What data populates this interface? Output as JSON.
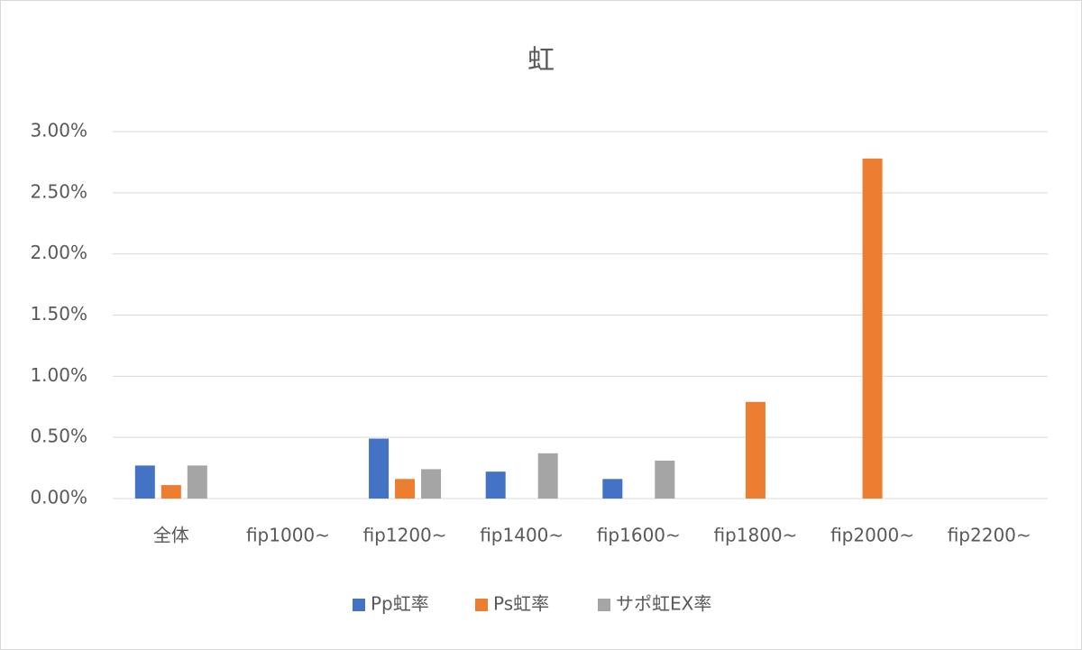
{
  "chart_data": {
    "type": "bar",
    "title": "虹",
    "categories": [
      "全体",
      "fip1000~",
      "fip1200~",
      "fip1400~",
      "fip1600~",
      "fip1800~",
      "fip2000~",
      "fip2200~"
    ],
    "series": [
      {
        "name": "Pp虹率",
        "color": "#4472c4",
        "values": [
          0.27,
          0,
          0.49,
          0.22,
          0.16,
          0,
          0,
          0
        ]
      },
      {
        "name": "Ps虹率",
        "color": "#ed7d31",
        "values": [
          0.11,
          0,
          0.16,
          0,
          0,
          0.79,
          2.78,
          0
        ]
      },
      {
        "name": "サポ虹EX率",
        "color": "#a5a5a5",
        "values": [
          0.27,
          0,
          0.24,
          0.37,
          0.31,
          0,
          0,
          0
        ]
      }
    ],
    "ylim": [
      0,
      3
    ],
    "yticks": [
      {
        "value": 0,
        "label": "0.00%"
      },
      {
        "value": 0.5,
        "label": "0.50%"
      },
      {
        "value": 1,
        "label": "1.00%"
      },
      {
        "value": 1.5,
        "label": "1.50%"
      },
      {
        "value": 2,
        "label": "2.00%"
      },
      {
        "value": 2.5,
        "label": "2.50%"
      },
      {
        "value": 3,
        "label": "3.00%"
      }
    ],
    "grid": true,
    "legend": "bottom"
  }
}
